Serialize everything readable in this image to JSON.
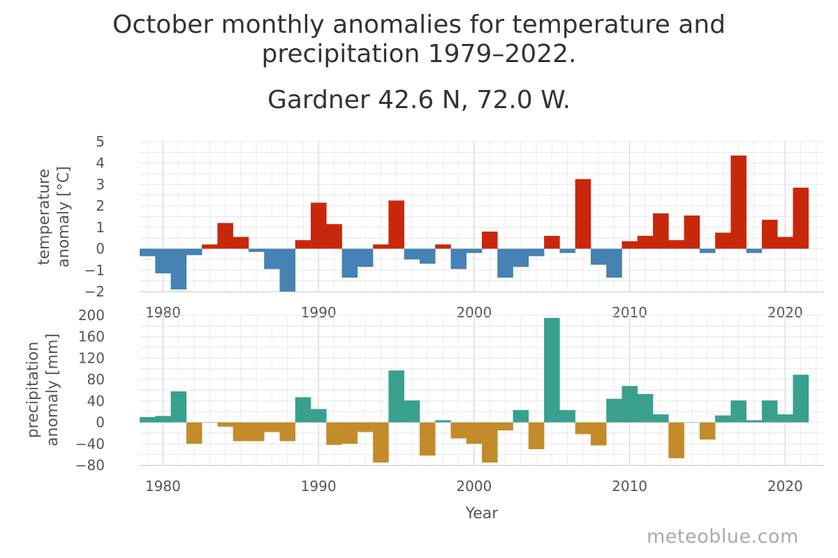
{
  "title": {
    "line1": "October monthly anomalies for temperature and",
    "line2": "precipitation 1979–2022.",
    "line3": "Gardner 42.6 N, 72.0 W."
  },
  "watermark": "meteoblue.com",
  "colors": {
    "temp_positive": "#c8270b",
    "temp_negative": "#4682b4",
    "precip_positive": "#3aa08e",
    "precip_negative": "#c48b2a"
  },
  "chart_data": [
    {
      "type": "bar",
      "ylabel_line1": "temperature",
      "ylabel_line2": "anomaly [°C]",
      "ylim": [
        -2,
        5
      ],
      "yticks": [
        5,
        4,
        3,
        2,
        1,
        0,
        -1,
        -2
      ],
      "xlim": [
        1978.5,
        2022.5
      ],
      "xticks": [
        1980,
        1990,
        2000,
        2010,
        2020
      ],
      "grid": true,
      "x": [
        1979,
        1980,
        1981,
        1982,
        1983,
        1984,
        1985,
        1986,
        1987,
        1988,
        1989,
        1990,
        1991,
        1992,
        1993,
        1994,
        1995,
        1996,
        1997,
        1998,
        1999,
        2000,
        2001,
        2002,
        2003,
        2004,
        2005,
        2006,
        2007,
        2008,
        2009,
        2010,
        2011,
        2012,
        2013,
        2014,
        2015,
        2016,
        2017,
        2018,
        2019,
        2020,
        2021
      ],
      "values": [
        -0.35,
        -1.15,
        -1.9,
        -0.3,
        0.2,
        1.2,
        0.55,
        -0.15,
        -0.95,
        -2.0,
        0.4,
        2.15,
        1.15,
        -1.35,
        -0.85,
        0.2,
        2.25,
        -0.5,
        -0.7,
        0.2,
        -0.95,
        -0.2,
        0.8,
        -1.35,
        -0.85,
        -0.35,
        0.6,
        -0.2,
        3.25,
        -0.75,
        -1.35,
        0.35,
        0.6,
        1.65,
        0.4,
        1.55,
        -0.2,
        0.75,
        4.35,
        -0.2,
        1.35,
        0.55,
        2.85
      ]
    },
    {
      "type": "bar",
      "ylabel_line1": "precipitation",
      "ylabel_line2": "anomaly [mm]",
      "xlabel": "Year",
      "ylim": [
        -80,
        200
      ],
      "yticks": [
        200,
        160,
        120,
        80,
        40,
        0,
        -40,
        -80
      ],
      "xlim": [
        1978.5,
        2022.5
      ],
      "xticks": [
        1980,
        1990,
        2000,
        2010,
        2020
      ],
      "grid": true,
      "x": [
        1979,
        1980,
        1981,
        1982,
        1983,
        1984,
        1985,
        1986,
        1987,
        1988,
        1989,
        1990,
        1991,
        1992,
        1993,
        1994,
        1995,
        1996,
        1997,
        1998,
        1999,
        2000,
        2001,
        2002,
        2003,
        2004,
        2005,
        2006,
        2007,
        2008,
        2009,
        2010,
        2011,
        2012,
        2013,
        2014,
        2015,
        2016,
        2017,
        2018,
        2019,
        2020,
        2021
      ],
      "values": [
        10,
        12,
        58,
        -40,
        0,
        -8,
        -35,
        -35,
        -18,
        -35,
        47,
        25,
        -42,
        -40,
        -18,
        -75,
        97,
        41,
        -62,
        4,
        -30,
        -40,
        -75,
        -15,
        23,
        -50,
        195,
        23,
        -22,
        -43,
        44,
        68,
        53,
        15,
        -67,
        0,
        -32,
        13,
        41,
        4,
        41,
        15,
        89
      ]
    }
  ]
}
